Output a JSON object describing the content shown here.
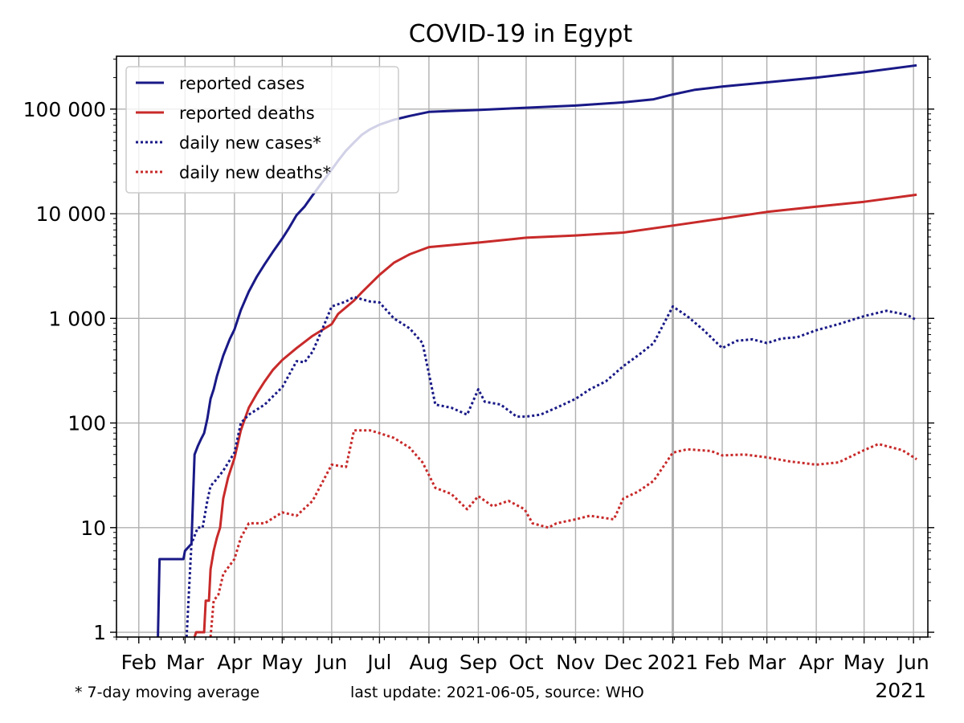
{
  "chart_data": {
    "type": "line",
    "title": "COVID-19 in Egypt",
    "xlabel": "",
    "ylabel": "",
    "y_scale": "log",
    "ylim": [
      0.9,
      320000
    ],
    "xlim": [
      "2020-01-18",
      "2021-06-10"
    ],
    "grid": true,
    "legend_position": "top-left",
    "y_ticks": [
      {
        "value": 1,
        "label": "1"
      },
      {
        "value": 10,
        "label": "10"
      },
      {
        "value": 100,
        "label": "100"
      },
      {
        "value": 1000,
        "label": "1 000"
      },
      {
        "value": 10000,
        "label": "10 000"
      },
      {
        "value": 100000,
        "label": "100 000"
      }
    ],
    "x_ticks": [
      {
        "date": "2020-02-01",
        "label": "Feb"
      },
      {
        "date": "2020-03-01",
        "label": "Mar"
      },
      {
        "date": "2020-04-01",
        "label": "Apr"
      },
      {
        "date": "2020-05-01",
        "label": "May"
      },
      {
        "date": "2020-06-01",
        "label": "Jun"
      },
      {
        "date": "2020-07-01",
        "label": "Jul"
      },
      {
        "date": "2020-08-01",
        "label": "Aug"
      },
      {
        "date": "2020-09-01",
        "label": "Sep"
      },
      {
        "date": "2020-10-01",
        "label": "Oct"
      },
      {
        "date": "2020-11-01",
        "label": "Nov"
      },
      {
        "date": "2020-12-01",
        "label": "Dec"
      },
      {
        "date": "2021-01-01",
        "label": "2021"
      },
      {
        "date": "2021-02-01",
        "label": "Feb"
      },
      {
        "date": "2021-03-01",
        "label": "Mar"
      },
      {
        "date": "2021-04-01",
        "label": "Apr"
      },
      {
        "date": "2021-05-01",
        "label": "May"
      },
      {
        "date": "2021-06-01",
        "label": "Jun"
      }
    ],
    "x_offset_label": "2021",
    "footnote": "* 7-day moving average",
    "source_note": "last update: 2021-06-05, source: WHO",
    "series": [
      {
        "name": "reported cases",
        "color": "#191987",
        "dash": "solid",
        "points": [
          [
            "2020-02-13",
            0.9
          ],
          [
            "2020-02-14",
            5
          ],
          [
            "2020-02-29",
            5
          ],
          [
            "2020-03-01",
            6
          ],
          [
            "2020-03-05",
            7
          ],
          [
            "2020-03-07",
            50
          ],
          [
            "2020-03-09",
            60
          ],
          [
            "2020-03-11",
            70
          ],
          [
            "2020-03-13",
            80
          ],
          [
            "2020-03-15",
            110
          ],
          [
            "2020-03-17",
            170
          ],
          [
            "2020-03-19",
            210
          ],
          [
            "2020-03-21",
            280
          ],
          [
            "2020-03-25",
            440
          ],
          [
            "2020-03-29",
            630
          ],
          [
            "2020-04-01",
            780
          ],
          [
            "2020-04-05",
            1200
          ],
          [
            "2020-04-10",
            1800
          ],
          [
            "2020-04-15",
            2500
          ],
          [
            "2020-04-20",
            3300
          ],
          [
            "2020-04-25",
            4300
          ],
          [
            "2020-05-01",
            5800
          ],
          [
            "2020-05-05",
            7200
          ],
          [
            "2020-05-10",
            9700
          ],
          [
            "2020-05-15",
            11700
          ],
          [
            "2020-05-20",
            15000
          ],
          [
            "2020-05-25",
            19000
          ],
          [
            "2020-06-01",
            26400
          ],
          [
            "2020-06-05",
            32000
          ],
          [
            "2020-06-10",
            40000
          ],
          [
            "2020-06-15",
            48000
          ],
          [
            "2020-06-20",
            57000
          ],
          [
            "2020-06-25",
            64000
          ],
          [
            "2020-07-01",
            71000
          ],
          [
            "2020-07-10",
            79000
          ],
          [
            "2020-07-20",
            86000
          ],
          [
            "2020-08-01",
            94000
          ],
          [
            "2020-08-15",
            96000
          ],
          [
            "2020-09-01",
            98000
          ],
          [
            "2020-10-01",
            103000
          ],
          [
            "2020-11-01",
            108000
          ],
          [
            "2020-12-01",
            116000
          ],
          [
            "2020-12-20",
            124000
          ],
          [
            "2021-01-01",
            138000
          ],
          [
            "2021-01-15",
            153000
          ],
          [
            "2021-02-01",
            164000
          ],
          [
            "2021-03-01",
            180000
          ],
          [
            "2021-04-01",
            200000
          ],
          [
            "2021-05-01",
            225000
          ],
          [
            "2021-06-03",
            262000
          ]
        ]
      },
      {
        "name": "reported deaths",
        "color": "#c82a2a",
        "dash": "solid",
        "points": [
          [
            "2020-03-07",
            0.9
          ],
          [
            "2020-03-08",
            1
          ],
          [
            "2020-03-13",
            1
          ],
          [
            "2020-03-14",
            2
          ],
          [
            "2020-03-16",
            2
          ],
          [
            "2020-03-17",
            4
          ],
          [
            "2020-03-19",
            6
          ],
          [
            "2020-03-21",
            8
          ],
          [
            "2020-03-23",
            10
          ],
          [
            "2020-03-25",
            19
          ],
          [
            "2020-03-28",
            30
          ],
          [
            "2020-04-01",
            46
          ],
          [
            "2020-04-05",
            85
          ],
          [
            "2020-04-10",
            140
          ],
          [
            "2020-04-15",
            190
          ],
          [
            "2020-04-20",
            250
          ],
          [
            "2020-04-25",
            320
          ],
          [
            "2020-05-01",
            400
          ],
          [
            "2020-05-10",
            520
          ],
          [
            "2020-05-20",
            680
          ],
          [
            "2020-06-01",
            880
          ],
          [
            "2020-06-05",
            1100
          ],
          [
            "2020-06-15",
            1480
          ],
          [
            "2020-06-20",
            1780
          ],
          [
            "2020-07-01",
            2600
          ],
          [
            "2020-07-10",
            3400
          ],
          [
            "2020-07-20",
            4100
          ],
          [
            "2020-08-01",
            4800
          ],
          [
            "2020-09-01",
            5300
          ],
          [
            "2020-10-01",
            5900
          ],
          [
            "2020-11-01",
            6200
          ],
          [
            "2020-12-01",
            6600
          ],
          [
            "2021-01-01",
            7700
          ],
          [
            "2021-02-01",
            9000
          ],
          [
            "2021-03-01",
            10400
          ],
          [
            "2021-04-01",
            11700
          ],
          [
            "2021-05-01",
            13000
          ],
          [
            "2021-06-03",
            15200
          ]
        ]
      },
      {
        "name": "daily new cases*",
        "color": "#191987",
        "dash": "dotted",
        "points": [
          [
            "2020-03-02",
            0.9
          ],
          [
            "2020-03-05",
            7
          ],
          [
            "2020-03-09",
            10
          ],
          [
            "2020-03-12",
            10
          ],
          [
            "2020-03-15",
            18
          ],
          [
            "2020-03-17",
            25
          ],
          [
            "2020-03-20",
            28
          ],
          [
            "2020-03-25",
            35
          ],
          [
            "2020-04-01",
            52
          ],
          [
            "2020-04-05",
            100
          ],
          [
            "2020-04-10",
            120
          ],
          [
            "2020-04-20",
            150
          ],
          [
            "2020-05-01",
            220
          ],
          [
            "2020-05-10",
            390
          ],
          [
            "2020-05-15",
            380
          ],
          [
            "2020-05-20",
            480
          ],
          [
            "2020-05-27",
            850
          ],
          [
            "2020-06-01",
            1300
          ],
          [
            "2020-06-10",
            1450
          ],
          [
            "2020-06-15",
            1600
          ],
          [
            "2020-06-25",
            1450
          ],
          [
            "2020-07-01",
            1420
          ],
          [
            "2020-07-10",
            1000
          ],
          [
            "2020-07-20",
            800
          ],
          [
            "2020-07-28",
            580
          ],
          [
            "2020-08-05",
            150
          ],
          [
            "2020-08-15",
            140
          ],
          [
            "2020-08-25",
            120
          ],
          [
            "2020-09-01",
            210
          ],
          [
            "2020-09-05",
            160
          ],
          [
            "2020-09-15",
            150
          ],
          [
            "2020-09-25",
            115
          ],
          [
            "2020-10-01",
            115
          ],
          [
            "2020-10-10",
            120
          ],
          [
            "2020-10-20",
            140
          ],
          [
            "2020-11-01",
            170
          ],
          [
            "2020-11-10",
            210
          ],
          [
            "2020-11-20",
            250
          ],
          [
            "2020-12-01",
            350
          ],
          [
            "2020-12-10",
            440
          ],
          [
            "2020-12-20",
            580
          ],
          [
            "2021-01-01",
            1300
          ],
          [
            "2021-01-10",
            1050
          ],
          [
            "2021-01-20",
            780
          ],
          [
            "2021-02-01",
            520
          ],
          [
            "2021-02-10",
            610
          ],
          [
            "2021-02-20",
            630
          ],
          [
            "2021-03-01",
            580
          ],
          [
            "2021-03-10",
            640
          ],
          [
            "2021-03-20",
            660
          ],
          [
            "2021-04-01",
            770
          ],
          [
            "2021-04-15",
            880
          ],
          [
            "2021-05-01",
            1050
          ],
          [
            "2021-05-15",
            1180
          ],
          [
            "2021-05-28",
            1080
          ],
          [
            "2021-06-03",
            960
          ]
        ]
      },
      {
        "name": "daily new deaths*",
        "color": "#c82a2a",
        "dash": "dotted",
        "points": [
          [
            "2020-03-17",
            0.9
          ],
          [
            "2020-03-19",
            2
          ],
          [
            "2020-03-22",
            2.3
          ],
          [
            "2020-03-25",
            3.6
          ],
          [
            "2020-04-01",
            5
          ],
          [
            "2020-04-05",
            8
          ],
          [
            "2020-04-10",
            11
          ],
          [
            "2020-04-20",
            11
          ],
          [
            "2020-05-01",
            14
          ],
          [
            "2020-05-10",
            13
          ],
          [
            "2020-05-20",
            18
          ],
          [
            "2020-06-01",
            40
          ],
          [
            "2020-06-10",
            38
          ],
          [
            "2020-06-15",
            85
          ],
          [
            "2020-06-25",
            85
          ],
          [
            "2020-07-01",
            80
          ],
          [
            "2020-07-10",
            72
          ],
          [
            "2020-07-20",
            58
          ],
          [
            "2020-07-28",
            42
          ],
          [
            "2020-08-05",
            24
          ],
          [
            "2020-08-15",
            21
          ],
          [
            "2020-08-25",
            15
          ],
          [
            "2020-09-01",
            20
          ],
          [
            "2020-09-10",
            16
          ],
          [
            "2020-09-20",
            18
          ],
          [
            "2020-09-30",
            15
          ],
          [
            "2020-10-05",
            11
          ],
          [
            "2020-10-15",
            10
          ],
          [
            "2020-10-20",
            11
          ],
          [
            "2020-11-01",
            12
          ],
          [
            "2020-11-10",
            13
          ],
          [
            "2020-11-25",
            12
          ],
          [
            "2020-12-01",
            19
          ],
          [
            "2020-12-10",
            22
          ],
          [
            "2020-12-20",
            28
          ],
          [
            "2021-01-01",
            52
          ],
          [
            "2021-01-10",
            56
          ],
          [
            "2021-01-25",
            54
          ],
          [
            "2021-02-01",
            49
          ],
          [
            "2021-02-15",
            50
          ],
          [
            "2021-03-01",
            47
          ],
          [
            "2021-03-15",
            43
          ],
          [
            "2021-04-01",
            40
          ],
          [
            "2021-04-15",
            42
          ],
          [
            "2021-05-01",
            55
          ],
          [
            "2021-05-10",
            63
          ],
          [
            "2021-05-25",
            55
          ],
          [
            "2021-06-03",
            45
          ]
        ]
      }
    ]
  }
}
